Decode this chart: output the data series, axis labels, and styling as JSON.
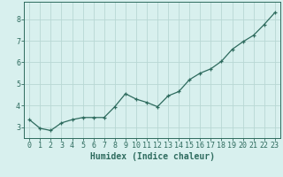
{
  "x": [
    0,
    1,
    2,
    3,
    4,
    5,
    6,
    7,
    8,
    9,
    10,
    11,
    12,
    13,
    14,
    15,
    16,
    17,
    18,
    19,
    20,
    21,
    22,
    23
  ],
  "y": [
    3.35,
    2.95,
    2.85,
    3.2,
    3.35,
    3.45,
    3.45,
    3.45,
    3.95,
    4.55,
    4.3,
    4.15,
    3.95,
    4.45,
    4.65,
    5.2,
    5.5,
    5.7,
    6.05,
    6.6,
    6.95,
    7.25,
    7.75,
    8.3
  ],
  "line_color": "#2e6b5e",
  "marker": "+",
  "marker_size": 3,
  "line_width": 0.9,
  "bg_color": "#d8f0ee",
  "grid_color": "#b8d8d4",
  "xlabel": "Humidex (Indice chaleur)",
  "xlabel_fontsize": 7,
  "tick_fontsize": 6,
  "yticks": [
    3,
    4,
    5,
    6,
    7,
    8
  ],
  "ylim": [
    2.5,
    8.8
  ],
  "xlim": [
    -0.5,
    23.5
  ],
  "tick_color": "#2e6b5e",
  "axis_color": "#2e6b5e"
}
